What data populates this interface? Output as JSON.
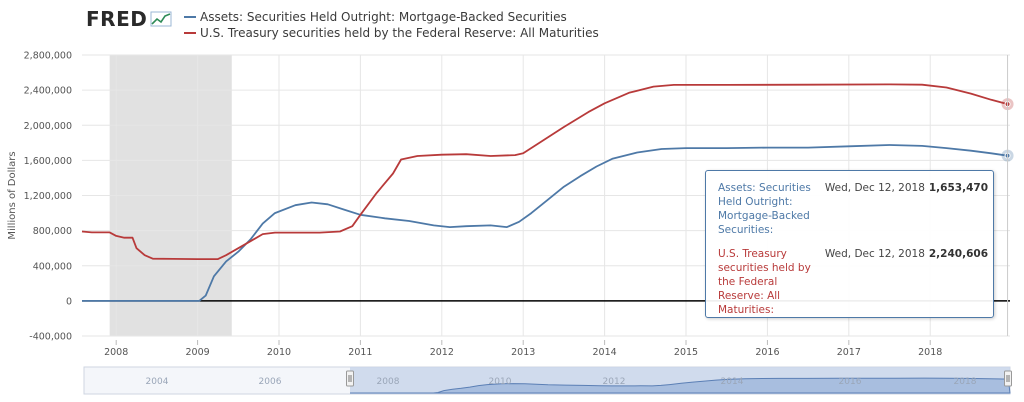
{
  "header": {
    "logo_text": "FRED",
    "logo_icon": "fred-chart-icon"
  },
  "chart_data": {
    "type": "line",
    "ylabel": "Millions of Dollars",
    "yticks": [
      "-400,000",
      "0",
      "400,000",
      "800,000",
      "1,200,000",
      "1,600,000",
      "2,000,000",
      "2,400,000",
      "2,800,000"
    ],
    "ytick_values": [
      -400000,
      0,
      400000,
      800000,
      1200000,
      1600000,
      2000000,
      2400000,
      2800000
    ],
    "ylim": [
      -400000,
      2800000
    ],
    "xticks": [
      "2008",
      "2009",
      "2010",
      "2011",
      "2012",
      "2013",
      "2014",
      "2015",
      "2016",
      "2017",
      "2018"
    ],
    "xtick_values": [
      2008,
      2009,
      2010,
      2011,
      2012,
      2013,
      2014,
      2015,
      2016,
      2017,
      2018
    ],
    "xlim": [
      2007.58,
      2018.98
    ],
    "recession": [
      2007.92,
      2009.42
    ],
    "grid": true,
    "legend_position": "top-left",
    "series": [
      {
        "name": "Assets: Securities Held Outright: Mortgage-Backed Securities",
        "color": "#4e79a7",
        "points": [
          [
            2007.58,
            0
          ],
          [
            2009.02,
            0
          ],
          [
            2009.1,
            60000
          ],
          [
            2009.2,
            280000
          ],
          [
            2009.35,
            450000
          ],
          [
            2009.5,
            560000
          ],
          [
            2009.65,
            700000
          ],
          [
            2009.8,
            880000
          ],
          [
            2009.95,
            1000000
          ],
          [
            2010.2,
            1090000
          ],
          [
            2010.4,
            1120000
          ],
          [
            2010.6,
            1100000
          ],
          [
            2010.8,
            1040000
          ],
          [
            2011.0,
            980000
          ],
          [
            2011.3,
            940000
          ],
          [
            2011.6,
            910000
          ],
          [
            2011.9,
            860000
          ],
          [
            2012.1,
            840000
          ],
          [
            2012.3,
            850000
          ],
          [
            2012.6,
            860000
          ],
          [
            2012.8,
            840000
          ],
          [
            2012.95,
            900000
          ],
          [
            2013.1,
            1000000
          ],
          [
            2013.3,
            1150000
          ],
          [
            2013.5,
            1300000
          ],
          [
            2013.7,
            1420000
          ],
          [
            2013.9,
            1530000
          ],
          [
            2014.1,
            1620000
          ],
          [
            2014.4,
            1690000
          ],
          [
            2014.7,
            1730000
          ],
          [
            2015.0,
            1740000
          ],
          [
            2015.5,
            1740000
          ],
          [
            2016.0,
            1745000
          ],
          [
            2016.5,
            1745000
          ],
          [
            2017.0,
            1760000
          ],
          [
            2017.5,
            1775000
          ],
          [
            2017.9,
            1765000
          ],
          [
            2018.2,
            1740000
          ],
          [
            2018.5,
            1710000
          ],
          [
            2018.75,
            1680000
          ],
          [
            2018.95,
            1653470
          ]
        ]
      },
      {
        "name": "U.S. Treasury securities held by the Federal Reserve: All Maturities",
        "color": "#b83a3a",
        "points": [
          [
            2007.58,
            790000
          ],
          [
            2007.7,
            780000
          ],
          [
            2007.92,
            780000
          ],
          [
            2008.0,
            740000
          ],
          [
            2008.1,
            720000
          ],
          [
            2008.2,
            720000
          ],
          [
            2008.25,
            600000
          ],
          [
            2008.35,
            520000
          ],
          [
            2008.45,
            480000
          ],
          [
            2008.7,
            478000
          ],
          [
            2009.0,
            476000
          ],
          [
            2009.25,
            476000
          ],
          [
            2009.35,
            520000
          ],
          [
            2009.5,
            600000
          ],
          [
            2009.65,
            680000
          ],
          [
            2009.8,
            760000
          ],
          [
            2009.95,
            777000
          ],
          [
            2010.5,
            777000
          ],
          [
            2010.75,
            790000
          ],
          [
            2010.9,
            850000
          ],
          [
            2011.0,
            980000
          ],
          [
            2011.2,
            1230000
          ],
          [
            2011.4,
            1450000
          ],
          [
            2011.5,
            1610000
          ],
          [
            2011.7,
            1650000
          ],
          [
            2012.0,
            1665000
          ],
          [
            2012.3,
            1670000
          ],
          [
            2012.6,
            1650000
          ],
          [
            2012.9,
            1660000
          ],
          [
            2013.0,
            1680000
          ],
          [
            2013.2,
            1800000
          ],
          [
            2013.5,
            1980000
          ],
          [
            2013.8,
            2150000
          ],
          [
            2014.0,
            2250000
          ],
          [
            2014.3,
            2370000
          ],
          [
            2014.6,
            2440000
          ],
          [
            2014.85,
            2460000
          ],
          [
            2015.5,
            2460000
          ],
          [
            2016.5,
            2462000
          ],
          [
            2017.5,
            2465000
          ],
          [
            2017.9,
            2462000
          ],
          [
            2018.2,
            2430000
          ],
          [
            2018.5,
            2360000
          ],
          [
            2018.75,
            2290000
          ],
          [
            2018.95,
            2240606
          ]
        ]
      }
    ],
    "navigator": {
      "labels": [
        "2004",
        "2006",
        "2008",
        "2010",
        "2012",
        "2014",
        "2016",
        "2018"
      ]
    }
  },
  "tooltip": {
    "rows": [
      {
        "name": "Assets: Securities Held Outright: Mortgage-Backed Securities:",
        "date": "Wed, Dec 12, 2018",
        "value": "1,653,470",
        "color": "#4e79a7"
      },
      {
        "name": "U.S. Treasury securities held by the Federal Reserve: All Maturities:",
        "date": "Wed, Dec 12, 2018",
        "value": "2,240,606",
        "color": "#b83a3a"
      }
    ]
  }
}
